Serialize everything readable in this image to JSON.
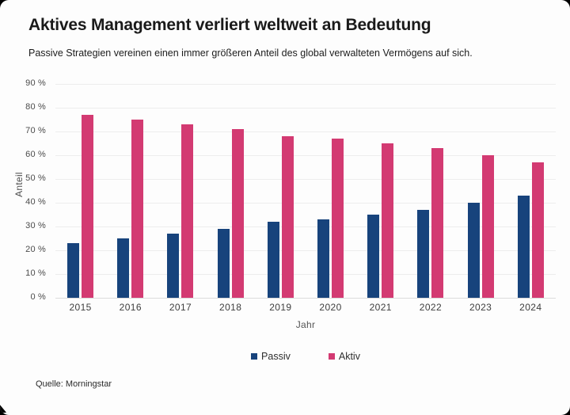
{
  "card": {
    "title": "Aktives Management verliert weltweit an Bedeutung",
    "subtitle": "Passive Strategien vereinen einen immer größeren Anteil des global verwalteten Vermögens auf sich.",
    "source": "Quelle: Morningstar"
  },
  "chart_data": {
    "type": "bar",
    "title": "Aktives Management verliert weltweit an Bedeutung",
    "subtitle": "Passive Strategien vereinen einen immer größeren Anteil des global verwalteten Vermögens auf sich.",
    "categories": [
      "2015",
      "2016",
      "2017",
      "2018",
      "2019",
      "2020",
      "2021",
      "2022",
      "2023",
      "2024"
    ],
    "series": [
      {
        "name": "Passiv",
        "color": "#17437c",
        "values": [
          23,
          25,
          27,
          29,
          32,
          33,
          35,
          37,
          40,
          43
        ]
      },
      {
        "name": "Aktiv",
        "color": "#d33a72",
        "values": [
          77,
          75,
          73,
          71,
          68,
          67,
          65,
          63,
          60,
          57
        ]
      }
    ],
    "xlabel": "Jahr",
    "ylabel": "Anteil",
    "ylim": [
      0,
      90
    ],
    "ytick_step": 10,
    "yticks": [
      "0 %",
      "10 %",
      "20 %",
      "30 %",
      "40 %",
      "50 %",
      "60 %",
      "70 %",
      "80 %",
      "90 %"
    ],
    "grid": true,
    "legend_position": "bottom",
    "source": "Quelle: Morningstar"
  },
  "colors": {
    "passiv_blue": "#17437c",
    "aktiv_pink": "#d33a72",
    "card_background": "#fdfdfd",
    "gridline": "#ededed",
    "axis_text": "#4b4b4b"
  }
}
